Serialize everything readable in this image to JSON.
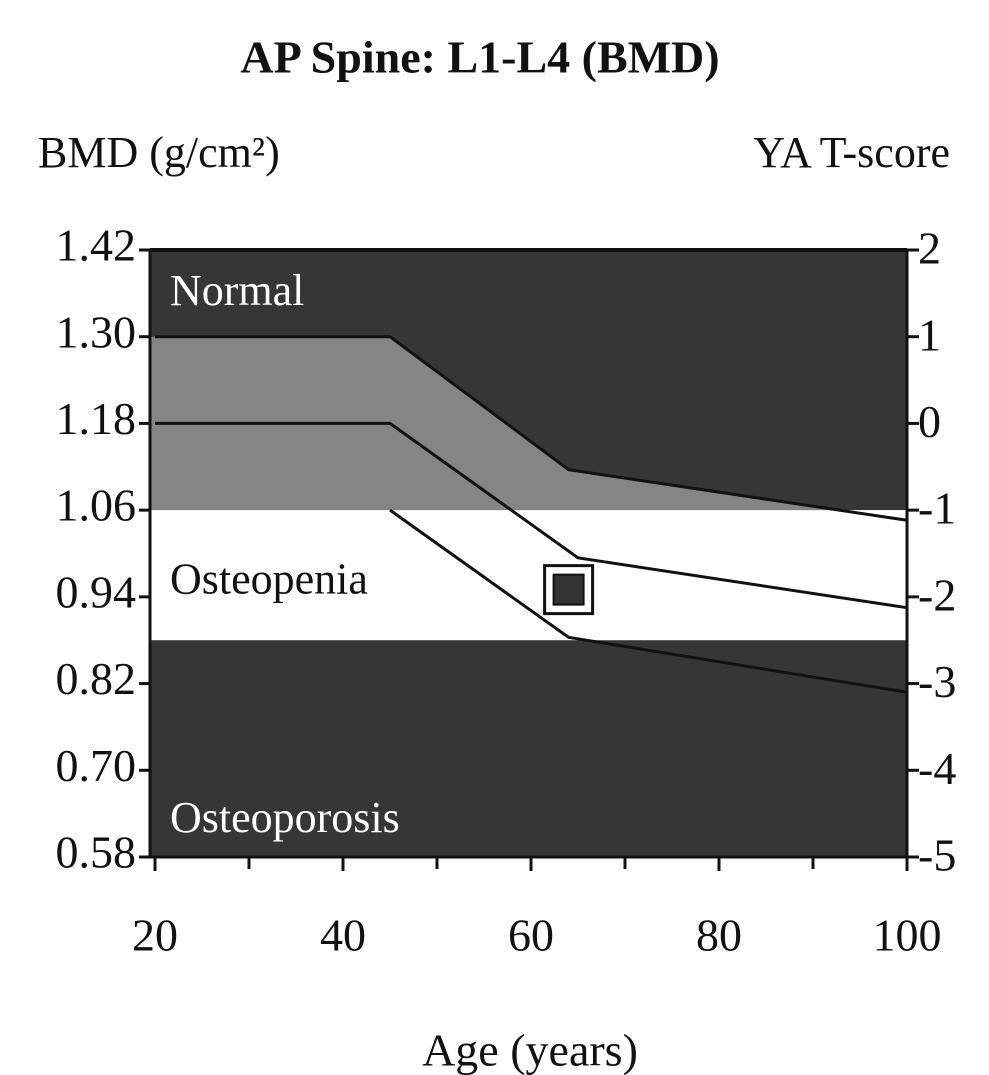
{
  "chart_data": {
    "type": "line",
    "title": "AP Spine: L1-L4 (BMD)",
    "y_label": "BMD (g/cm²)",
    "y2_label": "YA T-score",
    "x_label": "Age (years)",
    "xlim": [
      20,
      100
    ],
    "xticks": [
      20,
      40,
      60,
      80,
      100
    ],
    "xminor_ticks": [
      30,
      50,
      70,
      90
    ],
    "ylim": [
      0.58,
      1.42
    ],
    "yticks": [
      1.42,
      {
        "value": 1.3,
        "label": "1.30"
      },
      1.18,
      1.06,
      0.94,
      0.82,
      {
        "value": 0.7,
        "label": "0.70"
      },
      0.58
    ],
    "y2lim": [
      -5,
      2
    ],
    "y2ticks": [
      2,
      1,
      0,
      -1,
      -2,
      -3,
      -4,
      -5
    ],
    "regions": [
      {
        "name": "Normal",
        "from": 1.06,
        "to": 1.42,
        "color": "#363636",
        "text_color": "#ffffff"
      },
      {
        "name": "Osteopenia",
        "from": 0.88,
        "to": 1.06,
        "color": "#ffffff",
        "text_color": "#111111"
      },
      {
        "name": "Osteoporosis",
        "from": 0.58,
        "to": 0.88,
        "color": "#363636",
        "text_color": "#ffffff"
      }
    ],
    "reference_fill": "#858585",
    "series": [
      {
        "color": "#111111",
        "x": [
          20,
          45,
          64,
          100
        ],
        "values": [
          1.3,
          1.3,
          1.116,
          1.046
        ]
      },
      {
        "color": "#111111",
        "x": [
          20,
          45,
          65,
          100
        ],
        "values": [
          1.18,
          1.18,
          0.994,
          0.925
        ]
      },
      {
        "color": "#111111",
        "x": [
          45,
          64,
          100
        ],
        "values": [
          1.06,
          0.884,
          0.808
        ]
      }
    ],
    "point": {
      "x": 64,
      "y": 0.95,
      "color": "#333333"
    }
  }
}
